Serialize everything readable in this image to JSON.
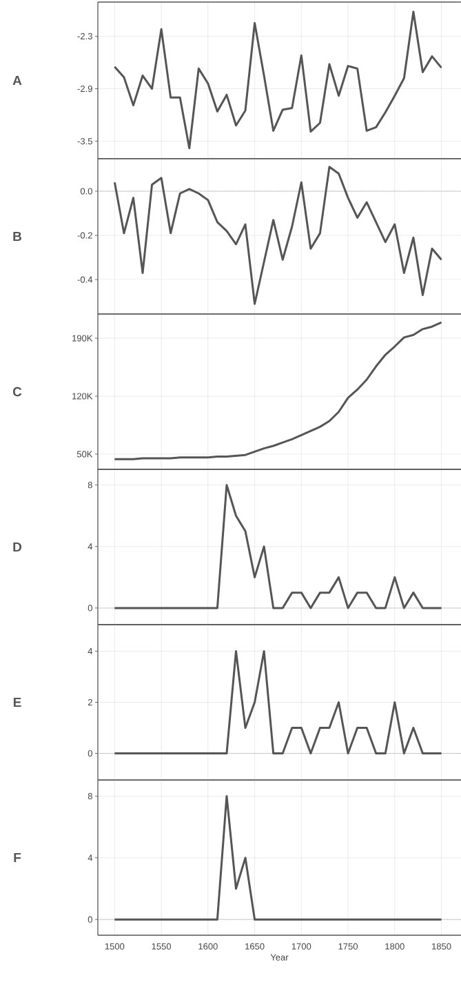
{
  "chart_data": [
    {
      "type": "line",
      "title": "A",
      "color": "#555555",
      "grid": true,
      "tick_labels": "y",
      "xlim": [
        1482,
        1871
      ],
      "ylim": [
        -3.7,
        -1.91
      ],
      "xticks": [
        1500,
        1550,
        1600,
        1650,
        1700,
        1750,
        1800,
        1850
      ],
      "yticks": [
        -3.5,
        -2.9,
        -2.3
      ],
      "x": [
        1500,
        1510,
        1520,
        1530,
        1540,
        1550,
        1560,
        1570,
        1580,
        1590,
        1600,
        1610,
        1620,
        1630,
        1640,
        1650,
        1660,
        1670,
        1680,
        1690,
        1700,
        1710,
        1720,
        1730,
        1740,
        1750,
        1760,
        1770,
        1780,
        1790,
        1800,
        1810,
        1820,
        1830,
        1840,
        1850
      ],
      "values": [
        -2.65,
        -2.77,
        -3.09,
        -2.75,
        -2.9,
        -2.22,
        -3.0,
        -3.0,
        -3.58,
        -2.67,
        -2.84,
        -3.16,
        -2.97,
        -3.32,
        -3.15,
        -2.15,
        -2.75,
        -3.38,
        -3.14,
        -3.12,
        -2.52,
        -3.39,
        -3.29,
        -2.62,
        -2.98,
        -2.64,
        -2.67,
        -3.38,
        -3.34,
        -3.17,
        -2.98,
        -2.78,
        -2.02,
        -2.71,
        -2.53,
        -2.66
      ]
    },
    {
      "type": "line",
      "title": "B",
      "color": "#555555",
      "grid": true,
      "tick_labels": "y",
      "xlim": [
        1482,
        1871
      ],
      "ylim": [
        -0.556,
        0.147
      ],
      "xticks": [
        1500,
        1550,
        1600,
        1650,
        1700,
        1750,
        1800,
        1850
      ],
      "yticks": [
        {
          "value": -0.4,
          "label": "-0.4"
        },
        {
          "value": -0.2,
          "label": "-0.2"
        },
        {
          "value": 0,
          "label": "0.0"
        }
      ],
      "ref_lines": [
        {
          "axis": "y",
          "value": 0,
          "color": "#9a9a9a",
          "line_style": "dotted"
        }
      ],
      "x": [
        1500,
        1510,
        1520,
        1530,
        1540,
        1550,
        1560,
        1570,
        1580,
        1590,
        1600,
        1610,
        1620,
        1630,
        1640,
        1650,
        1660,
        1670,
        1680,
        1690,
        1700,
        1710,
        1720,
        1730,
        1740,
        1750,
        1760,
        1770,
        1780,
        1790,
        1800,
        1810,
        1820,
        1830,
        1840,
        1850
      ],
      "values": [
        0.04,
        -0.19,
        -0.03,
        -0.37,
        0.03,
        0.06,
        -0.19,
        -0.01,
        0.01,
        -0.01,
        -0.04,
        -0.14,
        -0.18,
        -0.24,
        -0.15,
        -0.51,
        -0.32,
        -0.13,
        -0.31,
        -0.16,
        0.04,
        -0.26,
        -0.19,
        0.11,
        0.08,
        -0.03,
        -0.12,
        -0.05,
        -0.14,
        -0.23,
        -0.15,
        -0.37,
        -0.21,
        -0.47,
        -0.26,
        -0.31
      ]
    },
    {
      "type": "line",
      "title": "C",
      "color": "#555555",
      "grid": true,
      "tick_labels": "y",
      "xlim": [
        1482,
        1871
      ],
      "ylim": [
        31650,
        219200
      ],
      "xticks": [
        1500,
        1550,
        1600,
        1650,
        1700,
        1750,
        1800,
        1850
      ],
      "yticks": [
        {
          "value": 50000,
          "label": "50K"
        },
        {
          "value": 120000,
          "label": "120K"
        },
        {
          "value": 190000,
          "label": "190K"
        }
      ],
      "x": [
        1500,
        1510,
        1520,
        1530,
        1540,
        1550,
        1560,
        1570,
        1580,
        1590,
        1600,
        1610,
        1620,
        1630,
        1640,
        1650,
        1660,
        1670,
        1680,
        1690,
        1700,
        1710,
        1720,
        1730,
        1740,
        1750,
        1760,
        1770,
        1780,
        1790,
        1800,
        1810,
        1820,
        1830,
        1840,
        1850
      ],
      "values": [
        44000,
        44000,
        44000,
        45000,
        45000,
        45000,
        45000,
        46000,
        46000,
        46000,
        46000,
        47000,
        47000,
        48000,
        49000,
        53000,
        57000,
        60000,
        64000,
        68000,
        73000,
        78000,
        83000,
        90000,
        101000,
        118000,
        128000,
        140000,
        156000,
        170000,
        180000,
        191000,
        194000,
        201000,
        204000,
        209000
      ]
    },
    {
      "type": "line",
      "title": "D",
      "color": "#555555",
      "grid": true,
      "tick_labels": "y",
      "xlim": [
        1482,
        1871
      ],
      "ylim": [
        -1.08,
        9.02
      ],
      "xticks": [
        1500,
        1550,
        1600,
        1650,
        1700,
        1750,
        1800,
        1850
      ],
      "yticks": [
        0,
        4,
        8
      ],
      "ref_lines": [
        {
          "axis": "y",
          "value": 0,
          "color": "#9a9a9a",
          "line_style": "dotted"
        }
      ],
      "x": [
        1500,
        1510,
        1520,
        1530,
        1540,
        1550,
        1560,
        1570,
        1580,
        1590,
        1600,
        1610,
        1620,
        1630,
        1640,
        1650,
        1660,
        1670,
        1680,
        1690,
        1700,
        1710,
        1720,
        1730,
        1740,
        1750,
        1760,
        1770,
        1780,
        1790,
        1800,
        1810,
        1820,
        1830,
        1840,
        1850
      ],
      "values": [
        0,
        0,
        0,
        0,
        0,
        0,
        0,
        0,
        0,
        0,
        0,
        0,
        8,
        6,
        5,
        2,
        4,
        0,
        0,
        1,
        1,
        0,
        1,
        1,
        2,
        0,
        1,
        1,
        0,
        0,
        2,
        0,
        1,
        0,
        0,
        0
      ]
    },
    {
      "type": "line",
      "title": "E",
      "color": "#555555",
      "grid": true,
      "tick_labels": "y",
      "xlim": [
        1482,
        1871
      ],
      "ylim": [
        -1.04,
        5.04
      ],
      "xticks": [
        1500,
        1550,
        1600,
        1650,
        1700,
        1750,
        1800,
        1850
      ],
      "yticks": [
        0,
        2,
        4
      ],
      "ref_lines": [
        {
          "axis": "y",
          "value": 0,
          "color": "#9a9a9a",
          "line_style": "dotted"
        }
      ],
      "x": [
        1500,
        1510,
        1520,
        1530,
        1540,
        1550,
        1560,
        1570,
        1580,
        1590,
        1600,
        1610,
        1620,
        1630,
        1640,
        1650,
        1660,
        1670,
        1680,
        1690,
        1700,
        1710,
        1720,
        1730,
        1740,
        1750,
        1760,
        1770,
        1780,
        1790,
        1800,
        1810,
        1820,
        1830,
        1840,
        1850
      ],
      "values": [
        0,
        0,
        0,
        0,
        0,
        0,
        0,
        0,
        0,
        0,
        0,
        0,
        0,
        4,
        1,
        2,
        4,
        0,
        0,
        1,
        1,
        0,
        1,
        1,
        2,
        0,
        1,
        1,
        0,
        0,
        2,
        0,
        1,
        0,
        0,
        0
      ]
    },
    {
      "type": "line",
      "title": "F",
      "xlabel": "Year",
      "color": "#555555",
      "grid": true,
      "xlim": [
        1482,
        1871
      ],
      "ylim": [
        -1.02,
        9.05
      ],
      "xticks": [
        1500,
        1550,
        1600,
        1650,
        1700,
        1750,
        1800,
        1850
      ],
      "yticks": [
        0,
        4,
        8
      ],
      "ref_lines": [
        {
          "axis": "y",
          "value": 0,
          "color": "#9a9a9a",
          "line_style": "dotted"
        }
      ],
      "x": [
        1500,
        1510,
        1520,
        1530,
        1540,
        1550,
        1560,
        1570,
        1580,
        1590,
        1600,
        1610,
        1620,
        1630,
        1640,
        1650,
        1660,
        1670,
        1680,
        1690,
        1700,
        1710,
        1720,
        1730,
        1740,
        1750,
        1760,
        1770,
        1780,
        1790,
        1800,
        1810,
        1820,
        1830,
        1840,
        1850
      ],
      "values": [
        0,
        0,
        0,
        0,
        0,
        0,
        0,
        0,
        0,
        0,
        0,
        0,
        8,
        2,
        4,
        0,
        0,
        0,
        0,
        0,
        0,
        0,
        0,
        0,
        0,
        0,
        0,
        0,
        0,
        0,
        0,
        0,
        0,
        0,
        0,
        0
      ]
    }
  ]
}
